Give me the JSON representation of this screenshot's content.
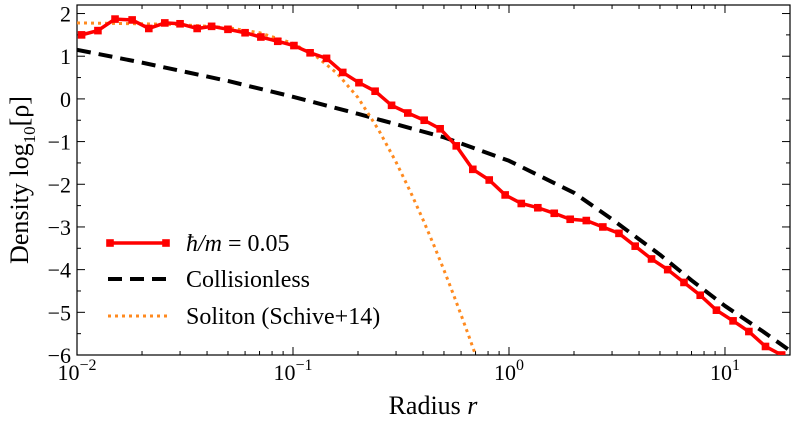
{
  "chart_data": {
    "type": "line",
    "title": "",
    "xlabel": "Radius r",
    "ylabel": "Density log10[ρ]",
    "x_scale": "log",
    "xlim": [
      0.01,
      20
    ],
    "ylim": [
      -6,
      2.2
    ],
    "x_ticks": [
      {
        "value": 0.01,
        "mantissa": "10",
        "exponent": "−2"
      },
      {
        "value": 0.1,
        "mantissa": "10",
        "exponent": "−1"
      },
      {
        "value": 1,
        "mantissa": "10",
        "exponent": "0"
      },
      {
        "value": 10,
        "mantissa": "10",
        "exponent": "1"
      }
    ],
    "y_ticks": [
      {
        "value": 2,
        "label": "2"
      },
      {
        "value": 1,
        "label": "1"
      },
      {
        "value": 0,
        "label": "0"
      },
      {
        "value": -1,
        "label": "−1"
      },
      {
        "value": -2,
        "label": "−2"
      },
      {
        "value": -3,
        "label": "−3"
      },
      {
        "value": -4,
        "label": "−4"
      },
      {
        "value": -5,
        "label": "−5"
      },
      {
        "value": -6,
        "label": "−6"
      }
    ],
    "grid": false,
    "legend_position": "lower-left",
    "series": [
      {
        "name": "ħ/m = 0.05",
        "style": "solid-square-markers",
        "color": "#ff0000",
        "x": [
          0.0105,
          0.0125,
          0.015,
          0.018,
          0.0215,
          0.0255,
          0.03,
          0.036,
          0.042,
          0.05,
          0.06,
          0.071,
          0.085,
          0.101,
          0.12,
          0.143,
          0.17,
          0.202,
          0.24,
          0.286,
          0.34,
          0.405,
          0.48,
          0.57,
          0.68,
          0.81,
          0.96,
          1.14,
          1.36,
          1.62,
          1.92,
          2.28,
          2.72,
          3.23,
          3.84,
          4.57,
          5.43,
          6.46,
          7.68,
          9.13,
          10.9,
          12.9,
          15.4,
          18.3
        ],
        "y": [
          1.5,
          1.6,
          1.87,
          1.85,
          1.65,
          1.78,
          1.76,
          1.65,
          1.7,
          1.63,
          1.55,
          1.45,
          1.35,
          1.25,
          1.08,
          0.95,
          0.62,
          0.38,
          0.18,
          -0.15,
          -0.33,
          -0.5,
          -0.7,
          -1.1,
          -1.65,
          -1.9,
          -2.25,
          -2.45,
          -2.55,
          -2.68,
          -2.82,
          -2.85,
          -3.0,
          -3.15,
          -3.45,
          -3.75,
          -4.0,
          -4.3,
          -4.6,
          -4.95,
          -5.2,
          -5.45,
          -5.8,
          -6.0
        ]
      },
      {
        "name": "Collisionless",
        "style": "dashed",
        "color": "#000000",
        "x": [
          0.01,
          0.02,
          0.05,
          0.1,
          0.2,
          0.5,
          1,
          2,
          3,
          5,
          7,
          10,
          15,
          20
        ],
        "y": [
          1.15,
          0.85,
          0.42,
          0.05,
          -0.35,
          -0.9,
          -1.45,
          -2.2,
          -2.82,
          -3.65,
          -4.25,
          -4.85,
          -5.45,
          -5.9
        ]
      },
      {
        "name": "Soliton (Schive+14)",
        "style": "dotted",
        "color": "#ff8a1f",
        "x": [
          0.01,
          0.02,
          0.03,
          0.05,
          0.07,
          0.1,
          0.13,
          0.16,
          0.2,
          0.25,
          0.3,
          0.35,
          0.4,
          0.45,
          0.5,
          0.55,
          0.6,
          0.65,
          0.7
        ],
        "y": [
          1.78,
          1.76,
          1.74,
          1.67,
          1.55,
          1.3,
          0.97,
          0.6,
          0.03,
          -0.74,
          -1.48,
          -2.18,
          -2.83,
          -3.44,
          -4.01,
          -4.55,
          -5.06,
          -5.54,
          -6.0
        ]
      }
    ],
    "legend": [
      {
        "italic_text": "ħ/m",
        "text": " = 0.05"
      },
      {
        "text": "Collisionless"
      },
      {
        "text": "Soliton (Schive+14)"
      }
    ],
    "axis_titles": {
      "x": {
        "text": "Radius ",
        "italic": "r"
      },
      "y": {
        "text": "Density log",
        "subscript": "10",
        "bracket": "[ρ]"
      }
    }
  }
}
